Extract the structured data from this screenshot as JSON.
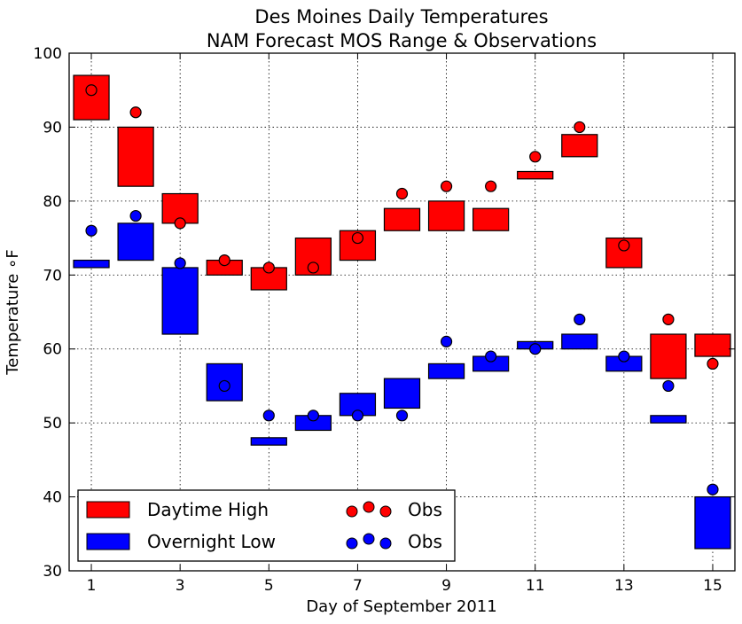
{
  "chart_data": {
    "type": "floating-bar-with-scatter",
    "title": "Des Moines Daily Temperatures",
    "subtitle": "NAM Forecast MOS Range & Observations",
    "xlabel": "Day of September 2011",
    "ylabel": "Temperature ∘F",
    "xlim": [
      0.5,
      15.5
    ],
    "ylim": [
      30,
      100
    ],
    "x_ticks": [
      1,
      3,
      5,
      7,
      9,
      11,
      13,
      15
    ],
    "y_ticks": [
      30,
      40,
      50,
      60,
      70,
      80,
      90,
      100
    ],
    "grid": true,
    "legend_position": "lower-left",
    "days": [
      1,
      2,
      3,
      4,
      5,
      6,
      7,
      8,
      9,
      10,
      11,
      12,
      13,
      14,
      15
    ],
    "series": [
      {
        "name": "Daytime High",
        "color": "#ff0000",
        "range_low": [
          91,
          82,
          77,
          70,
          68,
          70,
          72,
          76,
          76,
          76,
          83,
          86,
          71,
          56,
          59
        ],
        "range_high": [
          97,
          90,
          81,
          72,
          71,
          75,
          76,
          79,
          80,
          79,
          84,
          89,
          75,
          62,
          62
        ]
      },
      {
        "name": "Overnight Low",
        "color": "#0000ff",
        "range_low": [
          71,
          72,
          62,
          53,
          47,
          49,
          51,
          52,
          56,
          57,
          60,
          60,
          57,
          50,
          33
        ],
        "range_high": [
          72,
          77,
          71,
          58,
          48,
          51,
          54,
          56,
          58,
          59,
          61,
          62,
          59,
          51,
          40
        ]
      }
    ],
    "observations": [
      {
        "name": "Obs",
        "color": "#ff0000",
        "values": [
          95,
          92,
          77,
          72,
          71,
          71,
          75,
          81,
          82,
          82,
          86,
          90,
          74,
          64,
          58
        ]
      },
      {
        "name": "Obs",
        "color": "#0000ff",
        "values": [
          76,
          78,
          71.6,
          55,
          51,
          51,
          51,
          51,
          61,
          59,
          60,
          64,
          59,
          55,
          41
        ]
      }
    ]
  }
}
